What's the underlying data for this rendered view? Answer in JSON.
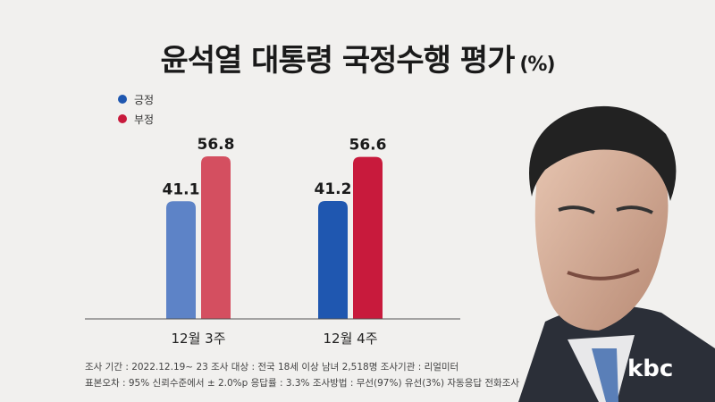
{
  "title": "윤석열 대통령 국정수행 평가",
  "title_unit": "(%)",
  "legend": [
    {
      "label": "긍정",
      "color": "#1f57b0"
    },
    {
      "label": "부정",
      "color": "#c81a3c"
    }
  ],
  "chart_data": {
    "type": "bar",
    "title": "윤석열 대통령 국정수행 평가",
    "categories": [
      "12월 3주",
      "12월 4주"
    ],
    "series": [
      {
        "name": "긍정",
        "values": [
          41.1,
          41.2
        ],
        "colors": [
          "#5d83c7",
          "#1f57b0"
        ]
      },
      {
        "name": "부정",
        "values": [
          56.8,
          56.6
        ],
        "colors": [
          "#d44f60",
          "#c81a3c"
        ]
      }
    ],
    "ylim": [
      0,
      70
    ],
    "grid": false,
    "legend_position": "top-left"
  },
  "footnote": {
    "line1": "조사 기간 : 2022.12.19~ 23   조사 대상 : 전국 18세 이상 남녀 2,518명   조사기관 : 리얼미터",
    "line2": "표본오차 : 95% 신뢰수준에서 ± 2.0%p   응답률 : 3.3%   조사방법 : 무선(97%) 유선(3%) 자동응답 전화조사"
  },
  "logo": "kbc"
}
